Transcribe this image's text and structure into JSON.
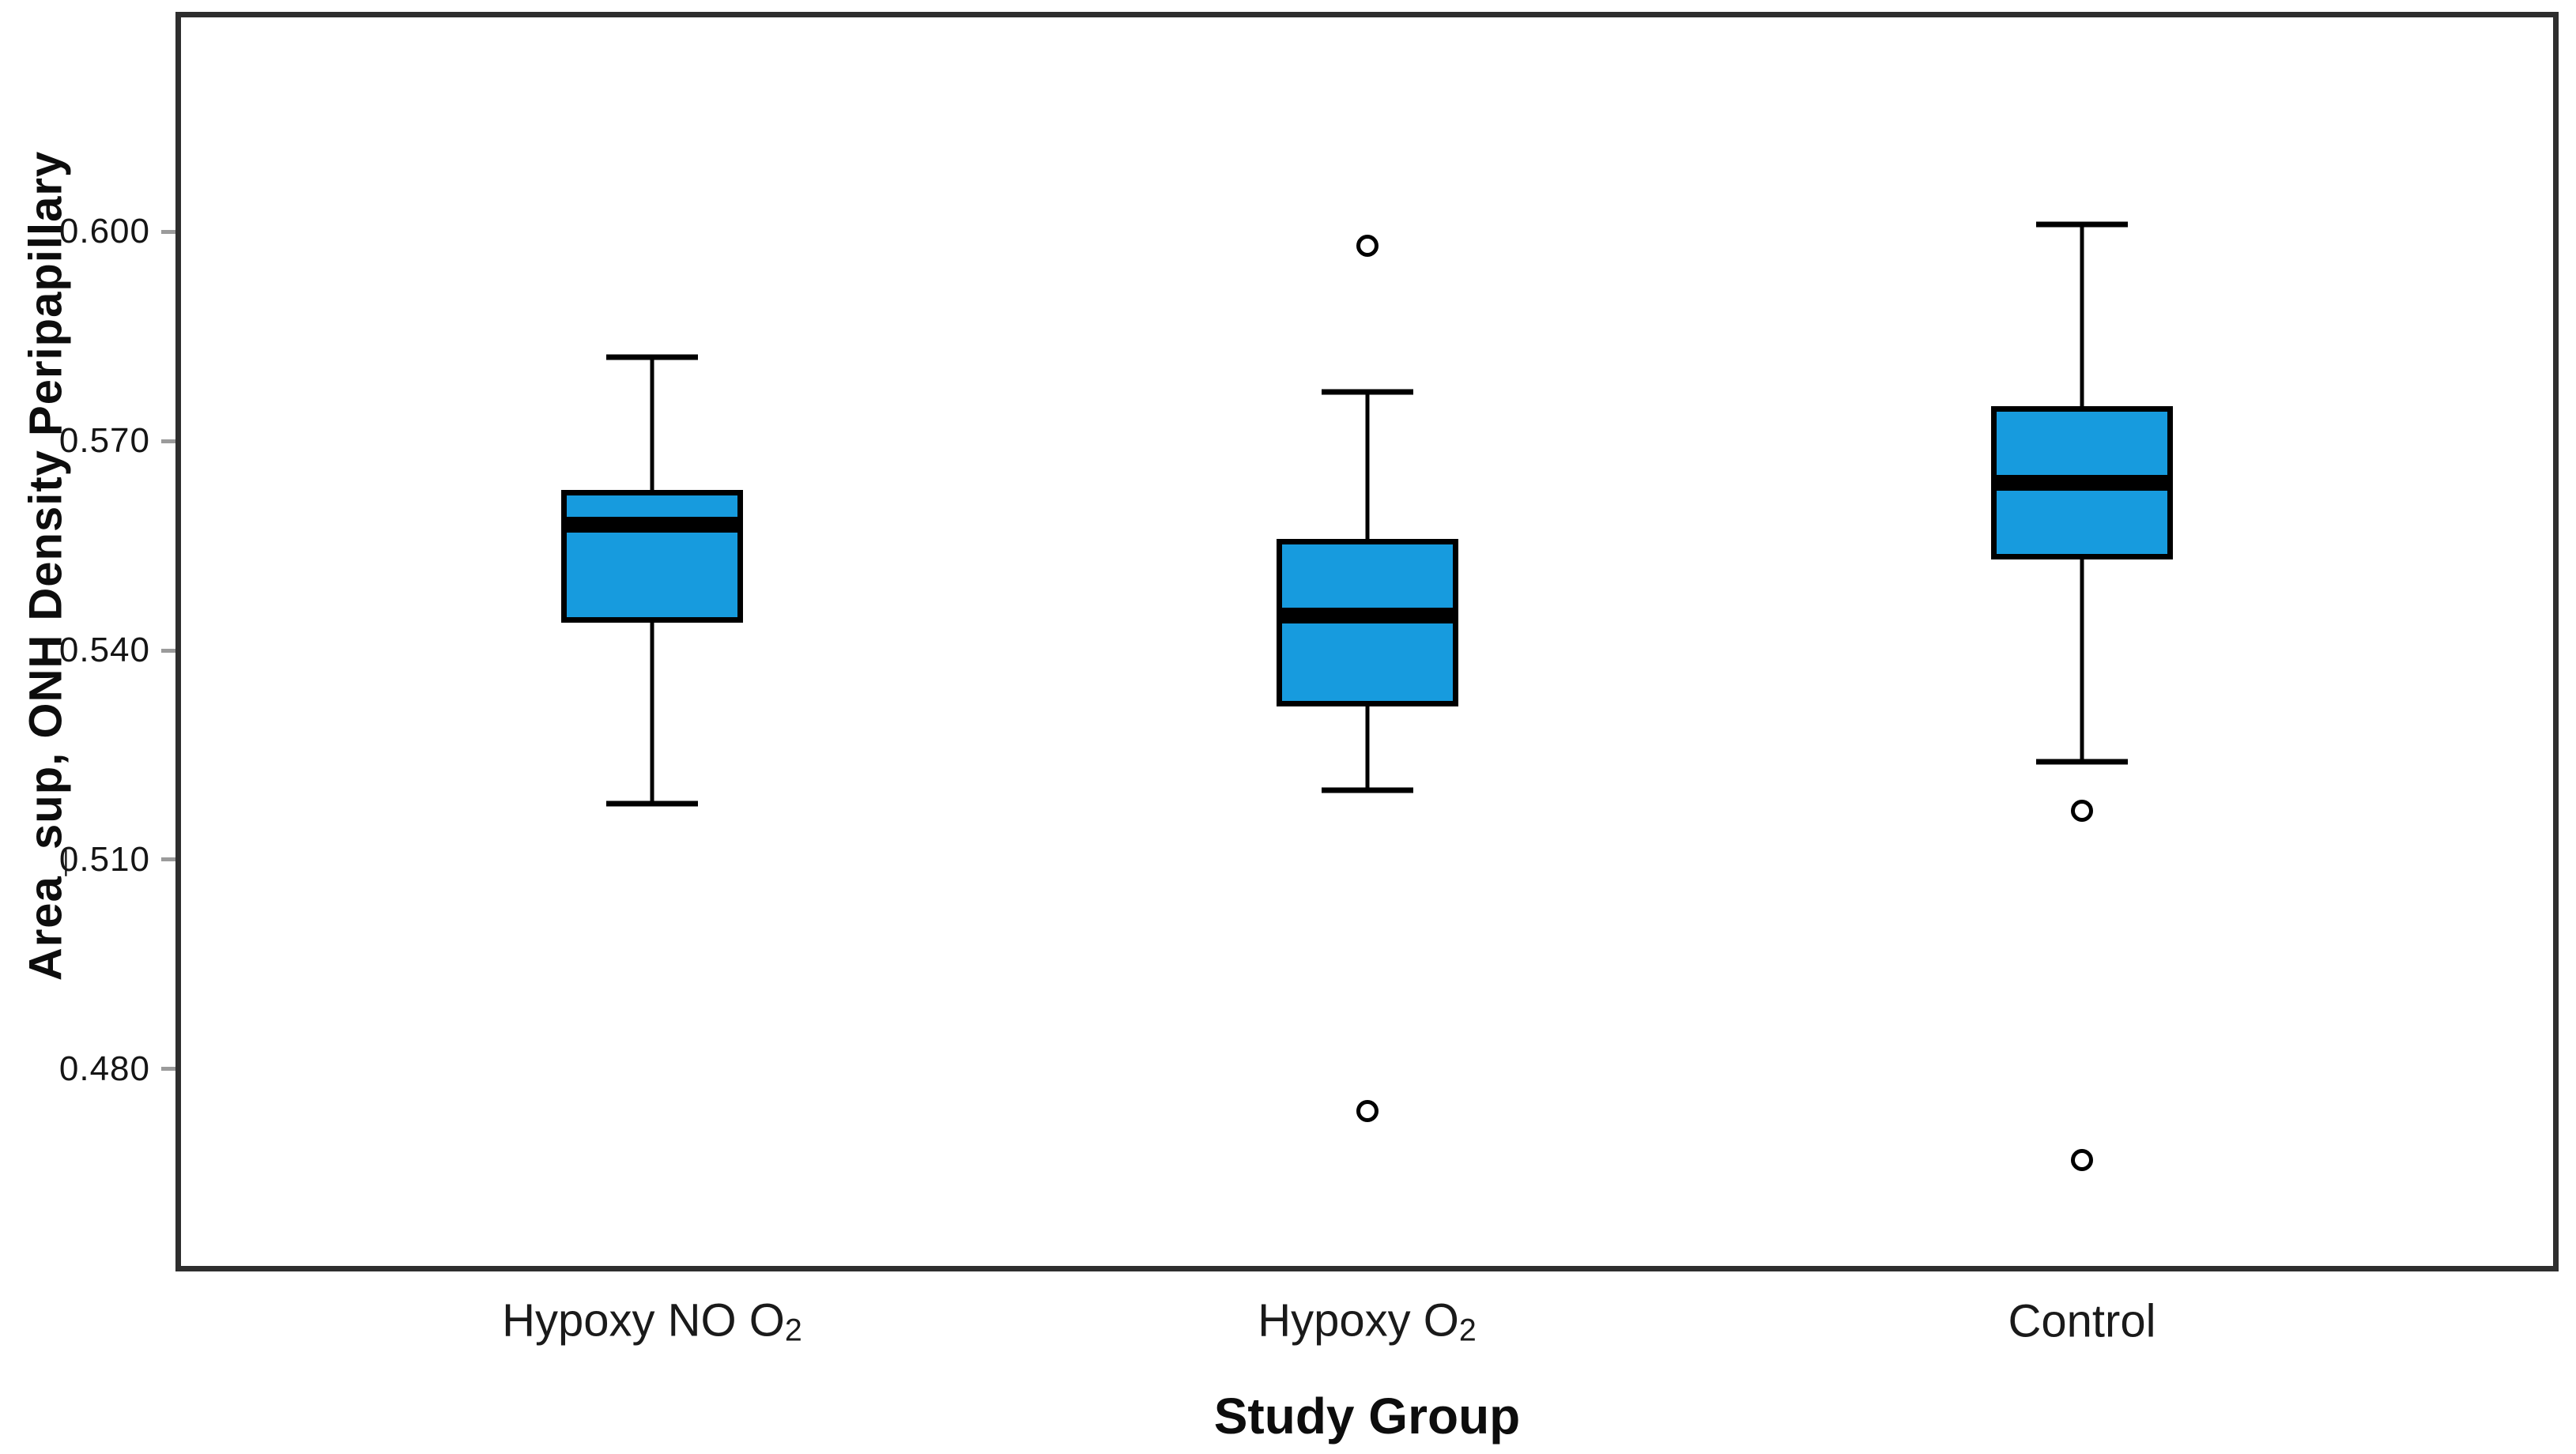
{
  "figure": {
    "background": "#ffffff",
    "frame_color": "#2e2e2e",
    "tick_color": "#9b9b9b",
    "text_color": "#1a1a1a"
  },
  "y_axis": {
    "title": "Area_sup, ONH Density Peripapillary",
    "tick_labels": [
      "0.600",
      "0.570",
      "0.540",
      "0.510",
      "0.480"
    ]
  },
  "x_axis": {
    "title": "Study Group",
    "category_labels": [
      "Hypoxy NO O2",
      "Hypoxy O2",
      "Control"
    ]
  },
  "chart_data": {
    "type": "box",
    "title": "",
    "xlabel": "Study Group",
    "ylabel": "Area_sup, ONH Density Peripapillary",
    "categories": [
      "Hypoxy NO O2",
      "Hypoxy O2",
      "Control"
    ],
    "yticks": [
      0.6,
      0.57,
      0.54,
      0.51,
      0.48
    ],
    "ylim": [
      0.451,
      0.6315
    ],
    "grid": false,
    "legend": "none",
    "box_fill_color": "#179BDE",
    "boxes": [
      {
        "category": "Hypoxy NO O2",
        "whisker_low": 0.518,
        "q1": 0.544,
        "median": 0.558,
        "q3": 0.563,
        "whisker_high": 0.582,
        "outliers": []
      },
      {
        "category": "Hypoxy O2",
        "whisker_low": 0.52,
        "q1": 0.532,
        "median": 0.545,
        "q3": 0.556,
        "whisker_high": 0.577,
        "outliers": [
          0.598,
          0.474
        ]
      },
      {
        "category": "Control",
        "whisker_low": 0.524,
        "q1": 0.553,
        "median": 0.564,
        "q3": 0.575,
        "whisker_high": 0.601,
        "outliers": [
          0.517,
          0.467
        ]
      }
    ]
  }
}
